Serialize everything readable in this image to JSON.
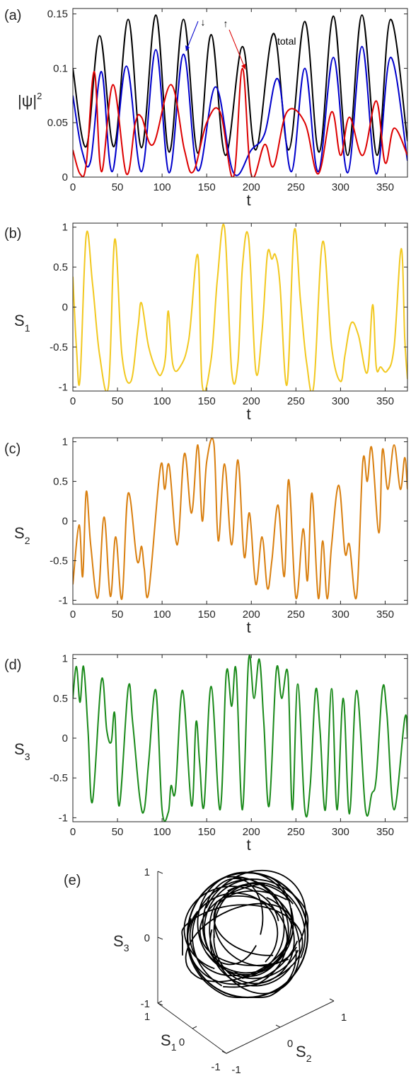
{
  "chart_data": [
    {
      "panel": "(a)",
      "type": "line",
      "xlabel": "t",
      "ylabel": "|ψ|",
      "ylabel_sup": "2",
      "xlim": [
        0,
        375
      ],
      "ylim": [
        0,
        0.155
      ],
      "xticks": [
        "0",
        "50",
        "100",
        "150",
        "200",
        "250",
        "300",
        "350"
      ],
      "yticks": [
        "0",
        "0.05",
        "0.1",
        "0.15"
      ],
      "annotations": [
        "↓",
        "↑",
        "total"
      ],
      "series": [
        {
          "name": "total",
          "color": "#000000",
          "x": [
            0,
            15,
            30,
            46,
            62,
            77,
            93,
            108,
            124,
            140,
            155,
            171,
            190,
            205,
            225,
            242,
            260,
            276,
            292,
            308,
            324,
            341,
            356,
            375
          ],
          "y": [
            0.1,
            0.028,
            0.13,
            0.028,
            0.145,
            0.027,
            0.149,
            0.023,
            0.145,
            0.022,
            0.131,
            0.02,
            0.12,
            0.025,
            0.132,
            0.025,
            0.143,
            0.023,
            0.148,
            0.02,
            0.149,
            0.02,
            0.145,
            0.033
          ]
        },
        {
          "name": "↓",
          "color": "#0000cc",
          "x": [
            0,
            10,
            20,
            32,
            44,
            60,
            77,
            93,
            108,
            124,
            140,
            160,
            180,
            200,
            215,
            230,
            245,
            260,
            275,
            292,
            308,
            324,
            340,
            356,
            375
          ],
          "y": [
            0.075,
            0.025,
            0.015,
            0.097,
            0.005,
            0.102,
            0.005,
            0.117,
            0.004,
            0.113,
            0.006,
            0.083,
            0.004,
            0.025,
            0.04,
            0.09,
            0.005,
            0.1,
            0.005,
            0.11,
            0.004,
            0.12,
            0.003,
            0.11,
            0.015
          ]
        },
        {
          "name": "↑",
          "color": "#dd0000",
          "x": [
            0,
            8,
            15,
            24,
            32,
            45,
            60,
            70,
            77,
            90,
            110,
            125,
            135,
            150,
            165,
            180,
            190,
            200,
            215,
            225,
            240,
            260,
            275,
            290,
            300,
            310,
            325,
            340,
            350,
            360,
            375
          ],
          "y": [
            0.025,
            0.003,
            0.012,
            0.097,
            0.005,
            0.085,
            0.003,
            0.05,
            0.055,
            0.03,
            0.085,
            0.025,
            0.005,
            0.05,
            0.06,
            0.0,
            0.1,
            0.002,
            0.03,
            0.01,
            0.06,
            0.05,
            0.003,
            0.06,
            0.02,
            0.055,
            0.02,
            0.07,
            0.013,
            0.045,
            0.02
          ]
        }
      ]
    },
    {
      "panel": "(b)",
      "type": "line",
      "xlabel": "t",
      "ylabel": "S",
      "ylabel_sub": "1",
      "xlim": [
        0,
        375
      ],
      "ylim": [
        -1.05,
        1.05
      ],
      "xticks": [
        "0",
        "50",
        "100",
        "150",
        "200",
        "250",
        "300",
        "350"
      ],
      "yticks": [
        "-1",
        "-0.5",
        "0",
        "0.5",
        "1"
      ],
      "series": [
        {
          "color": "#f2c81f",
          "x": [
            0,
            4,
            8,
            15,
            22,
            30,
            40,
            47,
            55,
            65,
            73,
            77,
            85,
            95,
            100,
            104,
            107,
            112,
            120,
            130,
            140,
            145,
            155,
            162,
            170,
            178,
            185,
            190,
            197,
            205,
            212,
            218,
            223,
            227,
            232,
            240,
            248,
            255,
            262,
            270,
            280,
            290,
            300,
            305,
            312,
            320,
            330,
            336,
            340,
            345,
            352,
            360,
            368,
            372,
            375
          ],
          "y": [
            0.38,
            -0.5,
            -0.9,
            0.9,
            0.3,
            -0.6,
            -0.98,
            0.85,
            -0.6,
            -0.93,
            -0.25,
            0.05,
            -0.5,
            -0.82,
            -0.82,
            -0.6,
            -0.05,
            -0.72,
            -0.75,
            -0.4,
            0.65,
            -0.98,
            -0.65,
            0.35,
            0.99,
            -0.8,
            -0.7,
            0.5,
            0.86,
            -0.8,
            -0.3,
            0.66,
            0.6,
            0.65,
            0.3,
            -0.97,
            0.95,
            0.1,
            -0.7,
            -0.98,
            0.82,
            -0.5,
            -0.93,
            -0.6,
            -0.2,
            -0.35,
            -0.82,
            0.03,
            -0.75,
            -0.75,
            -0.8,
            -0.5,
            0.73,
            -0.4,
            -0.9
          ]
        }
      ]
    },
    {
      "panel": "(c)",
      "type": "line",
      "xlabel": "t",
      "ylabel": "S",
      "ylabel_sub": "2",
      "xlim": [
        0,
        375
      ],
      "ylim": [
        -1.05,
        1.05
      ],
      "xticks": [
        "0",
        "50",
        "100",
        "150",
        "200",
        "250",
        "300",
        "350"
      ],
      "yticks": [
        "-1",
        "-0.5",
        "0",
        "0.5",
        "1"
      ],
      "series": [
        {
          "color": "#d97f0f",
          "x": [
            0,
            7,
            11,
            15,
            20,
            28,
            35,
            42,
            48,
            55,
            62,
            72,
            77,
            80,
            85,
            98,
            103,
            108,
            117,
            125,
            133,
            140,
            145,
            150,
            158,
            163,
            170,
            178,
            185,
            192,
            198,
            205,
            212,
            218,
            223,
            230,
            237,
            242,
            250,
            258,
            263,
            268,
            275,
            280,
            285,
            290,
            298,
            305,
            310,
            318,
            325,
            330,
            335,
            343,
            347,
            353,
            360,
            367,
            372,
            375
          ],
          "y": [
            -0.8,
            -0.05,
            -0.7,
            0.37,
            -0.3,
            -0.97,
            0.05,
            -0.95,
            -0.2,
            -0.98,
            0.35,
            -0.5,
            -0.32,
            -0.6,
            -0.9,
            0.67,
            0.4,
            0.7,
            -0.3,
            0.85,
            0.1,
            0.96,
            0.0,
            0.75,
            0.98,
            -0.25,
            0.72,
            -0.3,
            0.77,
            -0.45,
            0.1,
            -0.8,
            -0.2,
            -0.85,
            -0.5,
            0.2,
            -0.7,
            0.52,
            -0.97,
            -0.1,
            -0.75,
            0.35,
            -0.97,
            -0.25,
            -0.98,
            -0.3,
            0.45,
            -0.4,
            -0.3,
            -0.95,
            0.75,
            0.5,
            0.92,
            -0.15,
            0.9,
            0.4,
            0.96,
            0.4,
            0.8,
            0.4
          ]
        }
      ]
    },
    {
      "panel": "(d)",
      "type": "line",
      "xlabel": "t",
      "ylabel": "S",
      "ylabel_sub": "3",
      "xlim": [
        0,
        375
      ],
      "ylim": [
        -1.05,
        1.05
      ],
      "xticks": [
        "0",
        "50",
        "100",
        "150",
        "200",
        "250",
        "300",
        "350"
      ],
      "yticks": [
        "-1",
        "-0.5",
        "0",
        "0.5",
        "1"
      ],
      "series": [
        {
          "color": "#1a8a1a",
          "x": [
            0,
            4,
            8,
            12,
            17,
            22,
            32,
            38,
            43,
            47,
            52,
            62,
            67,
            75,
            80,
            85,
            93,
            100,
            107,
            110,
            115,
            123,
            133,
            138,
            142,
            147,
            155,
            165,
            172,
            178,
            183,
            190,
            197,
            203,
            209,
            214,
            220,
            228,
            234,
            241,
            246,
            252,
            260,
            266,
            272,
            277,
            283,
            290,
            296,
            303,
            310,
            318,
            328,
            335,
            340,
            347,
            352,
            360,
            372,
            375
          ],
          "y": [
            0.5,
            0.9,
            0.45,
            0.9,
            0.1,
            -0.8,
            0.73,
            0.1,
            -0.05,
            0.3,
            -0.85,
            0.63,
            0.2,
            -0.75,
            -0.9,
            -0.3,
            0.6,
            -0.9,
            -0.93,
            -0.6,
            -0.65,
            0.6,
            -0.85,
            0.2,
            -0.3,
            -0.85,
            0.65,
            -0.9,
            0.82,
            0.4,
            0.85,
            -0.9,
            0.99,
            0.5,
            0.99,
            0.2,
            -0.85,
            0.85,
            0.5,
            0.8,
            -0.9,
            0.68,
            -0.9,
            -0.6,
            0.6,
            0.1,
            -0.9,
            0.62,
            -0.9,
            0.5,
            -0.95,
            0.6,
            -0.9,
            -0.7,
            -0.5,
            0.62,
            0.3,
            -0.9,
            0.25,
            0.0
          ]
        }
      ]
    },
    {
      "panel": "(e)",
      "type": "line",
      "projection": "3d",
      "zlabel": "S",
      "zlabel_sub": "3",
      "xlabel": "S",
      "xlabel_sub": "1",
      "ylabel": "S",
      "ylabel_sub": "2",
      "ticks": [
        "1",
        "0",
        "-1"
      ],
      "series": [
        {
          "color": "#000000",
          "description_of_curve": ""
        }
      ]
    }
  ]
}
